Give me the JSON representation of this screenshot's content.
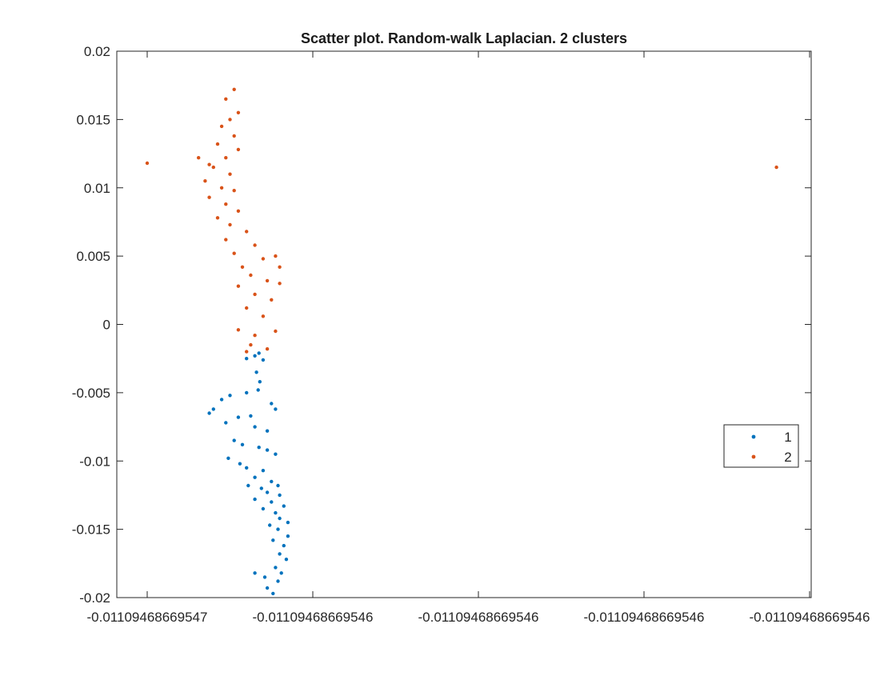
{
  "chart_data": {
    "type": "scatter",
    "title": "Scatter plot. Random-walk Laplacian. 2 clusters",
    "xlabel": "",
    "ylabel": "",
    "xlim": [
      0,
      8
    ],
    "ylim": [
      -0.02,
      0.02
    ],
    "grid": false,
    "legend_position": "right",
    "x_ticks": [
      {
        "value": 0,
        "label": "-0.01109468669547"
      },
      {
        "value": 2,
        "label": "-0.01109468669546"
      },
      {
        "value": 4,
        "label": "-0.01109468669546"
      },
      {
        "value": 6,
        "label": "-0.01109468669546"
      },
      {
        "value": 8,
        "label": "-0.01109468669546"
      }
    ],
    "y_ticks": [
      {
        "value": 0.02,
        "label": "0.02"
      },
      {
        "value": 0.015,
        "label": "0.015"
      },
      {
        "value": 0.01,
        "label": "0.01"
      },
      {
        "value": 0.005,
        "label": "0.005"
      },
      {
        "value": 0,
        "label": "0"
      },
      {
        "value": -0.005,
        "label": "-0.005"
      },
      {
        "value": -0.01,
        "label": "-0.01"
      },
      {
        "value": -0.015,
        "label": "-0.015"
      },
      {
        "value": -0.02,
        "label": "-0.02"
      }
    ],
    "note": "x values are in tick-index units (the plotted x variable varies only beyond the printed tick precision); y values in data units",
    "series": [
      {
        "name": "1",
        "color": "#0072BD",
        "points": [
          [
            1.2,
            -0.0025
          ],
          [
            1.3,
            -0.0023
          ],
          [
            1.35,
            -0.0021
          ],
          [
            1.4,
            -0.0026
          ],
          [
            1.32,
            -0.0035
          ],
          [
            1.36,
            -0.0042
          ],
          [
            1.34,
            -0.0048
          ],
          [
            1.2,
            -0.005
          ],
          [
            1.0,
            -0.0052
          ],
          [
            0.9,
            -0.0055
          ],
          [
            0.75,
            -0.0065
          ],
          [
            0.8,
            -0.0062
          ],
          [
            1.5,
            -0.0058
          ],
          [
            1.55,
            -0.0062
          ],
          [
            1.1,
            -0.0068
          ],
          [
            1.25,
            -0.0067
          ],
          [
            0.95,
            -0.0072
          ],
          [
            1.3,
            -0.0075
          ],
          [
            1.45,
            -0.0078
          ],
          [
            1.05,
            -0.0085
          ],
          [
            1.15,
            -0.0088
          ],
          [
            1.35,
            -0.009
          ],
          [
            1.45,
            -0.0092
          ],
          [
            1.55,
            -0.0095
          ],
          [
            0.98,
            -0.0098
          ],
          [
            1.12,
            -0.0102
          ],
          [
            1.2,
            -0.0105
          ],
          [
            1.4,
            -0.0107
          ],
          [
            1.3,
            -0.0112
          ],
          [
            1.5,
            -0.0115
          ],
          [
            1.58,
            -0.0118
          ],
          [
            1.22,
            -0.0118
          ],
          [
            1.38,
            -0.012
          ],
          [
            1.45,
            -0.0123
          ],
          [
            1.6,
            -0.0125
          ],
          [
            1.3,
            -0.0128
          ],
          [
            1.5,
            -0.013
          ],
          [
            1.65,
            -0.0133
          ],
          [
            1.4,
            -0.0135
          ],
          [
            1.55,
            -0.0138
          ],
          [
            1.6,
            -0.0142
          ],
          [
            1.7,
            -0.0145
          ],
          [
            1.48,
            -0.0147
          ],
          [
            1.58,
            -0.015
          ],
          [
            1.7,
            -0.0155
          ],
          [
            1.52,
            -0.0158
          ],
          [
            1.65,
            -0.0162
          ],
          [
            1.6,
            -0.0168
          ],
          [
            1.68,
            -0.0172
          ],
          [
            1.55,
            -0.0178
          ],
          [
            1.62,
            -0.0182
          ],
          [
            1.3,
            -0.0182
          ],
          [
            1.42,
            -0.0185
          ],
          [
            1.58,
            -0.0188
          ],
          [
            1.45,
            -0.0193
          ],
          [
            1.52,
            -0.0197
          ]
        ]
      },
      {
        "name": "2",
        "color": "#D95319",
        "points": [
          [
            0.0,
            0.0118
          ],
          [
            0.62,
            0.0122
          ],
          [
            0.75,
            0.0117
          ],
          [
            0.95,
            0.0165
          ],
          [
            1.05,
            0.0172
          ],
          [
            1.1,
            0.0155
          ],
          [
            1.0,
            0.015
          ],
          [
            0.9,
            0.0145
          ],
          [
            1.05,
            0.0138
          ],
          [
            0.85,
            0.0132
          ],
          [
            1.1,
            0.0128
          ],
          [
            0.95,
            0.0122
          ],
          [
            0.8,
            0.0115
          ],
          [
            1.0,
            0.011
          ],
          [
            0.7,
            0.0105
          ],
          [
            0.9,
            0.01
          ],
          [
            1.05,
            0.0098
          ],
          [
            0.75,
            0.0093
          ],
          [
            0.95,
            0.0088
          ],
          [
            1.1,
            0.0083
          ],
          [
            0.85,
            0.0078
          ],
          [
            1.0,
            0.0073
          ],
          [
            1.2,
            0.0068
          ],
          [
            0.95,
            0.0062
          ],
          [
            1.3,
            0.0058
          ],
          [
            1.05,
            0.0052
          ],
          [
            1.4,
            0.0048
          ],
          [
            1.15,
            0.0042
          ],
          [
            1.55,
            0.005
          ],
          [
            1.6,
            0.0042
          ],
          [
            1.25,
            0.0036
          ],
          [
            1.45,
            0.0032
          ],
          [
            1.6,
            0.003
          ],
          [
            1.1,
            0.0028
          ],
          [
            1.3,
            0.0022
          ],
          [
            1.5,
            0.0018
          ],
          [
            1.2,
            0.0012
          ],
          [
            1.4,
            0.0006
          ],
          [
            1.55,
            -0.0005
          ],
          [
            1.3,
            -0.0008
          ],
          [
            1.1,
            -0.0004
          ],
          [
            1.25,
            -0.0015
          ],
          [
            1.45,
            -0.0018
          ],
          [
            1.2,
            -0.002
          ],
          [
            7.6,
            0.0115
          ]
        ]
      }
    ]
  }
}
